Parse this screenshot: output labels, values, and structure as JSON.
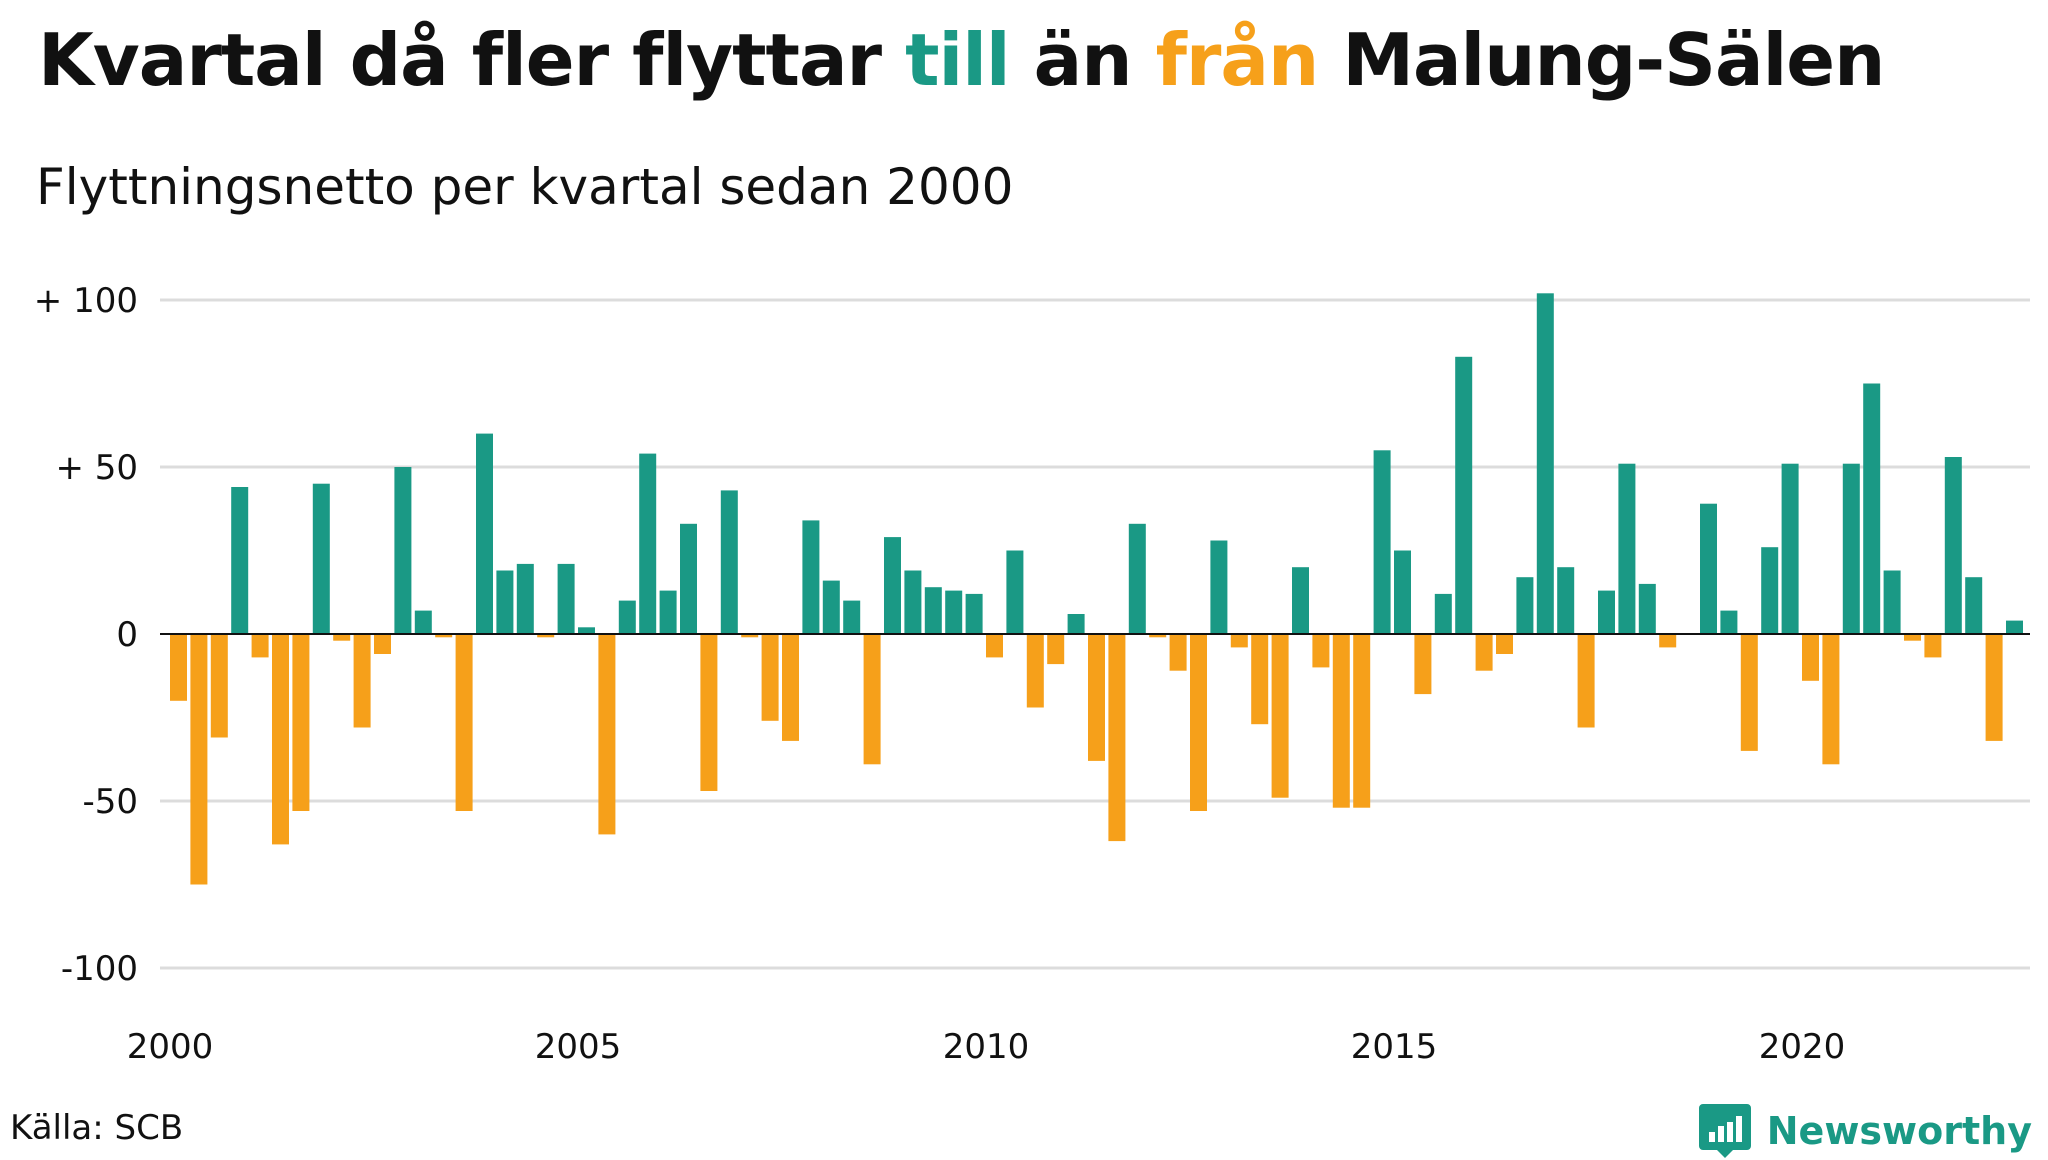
{
  "title": {
    "prefix": "Kvartal då fler flyttar ",
    "pos_word": "till",
    "middle": " än ",
    "neg_word": "från",
    "suffix": " Malung-Sälen"
  },
  "subtitle": "Flyttningsnetto per kvartal sedan 2000",
  "source": "Källa: SCB",
  "brand": {
    "name": "Newsworthy",
    "icon": "newsworthy-logo-icon"
  },
  "colors": {
    "positive": "#1a9985",
    "negative": "#f6a01a",
    "grid": "#dcdcdc",
    "zero": "#111111",
    "text": "#111111"
  },
  "chart_data": {
    "type": "bar",
    "xlabel": "",
    "ylabel": "",
    "ylim": [
      -100,
      100
    ],
    "y_ticks": [
      {
        "value": 100,
        "label": "+ 100"
      },
      {
        "value": 50,
        "label": "+  50"
      },
      {
        "value": 0,
        "label": "0"
      },
      {
        "value": -50,
        "label": "-50"
      },
      {
        "value": -100,
        "label": "-100"
      }
    ],
    "x_ticks": [
      "2000",
      "2005",
      "2010",
      "2015",
      "2020"
    ],
    "grid": true,
    "start_year": 2000,
    "values": [
      -20,
      -75,
      -31,
      44,
      -7,
      -63,
      -53,
      45,
      -2,
      -28,
      -6,
      50,
      7,
      -1,
      -53,
      60,
      19,
      21,
      -1,
      21,
      2,
      -60,
      10,
      54,
      13,
      33,
      -47,
      43,
      -1,
      -26,
      -32,
      34,
      16,
      10,
      -39,
      29,
      19,
      14,
      13,
      12,
      -7,
      25,
      -22,
      -9,
      6,
      -38,
      -62,
      33,
      -1,
      -11,
      -53,
      28,
      -4,
      -27,
      -49,
      20,
      -10,
      -52,
      -52,
      55,
      25,
      -18,
      12,
      83,
      -11,
      -6,
      17,
      102,
      20,
      -28,
      13,
      51,
      15,
      -4,
      0,
      39,
      7,
      -35,
      26,
      51,
      -14,
      -39,
      51,
      75,
      19,
      -2,
      -7,
      53,
      17,
      -32,
      4
    ]
  }
}
